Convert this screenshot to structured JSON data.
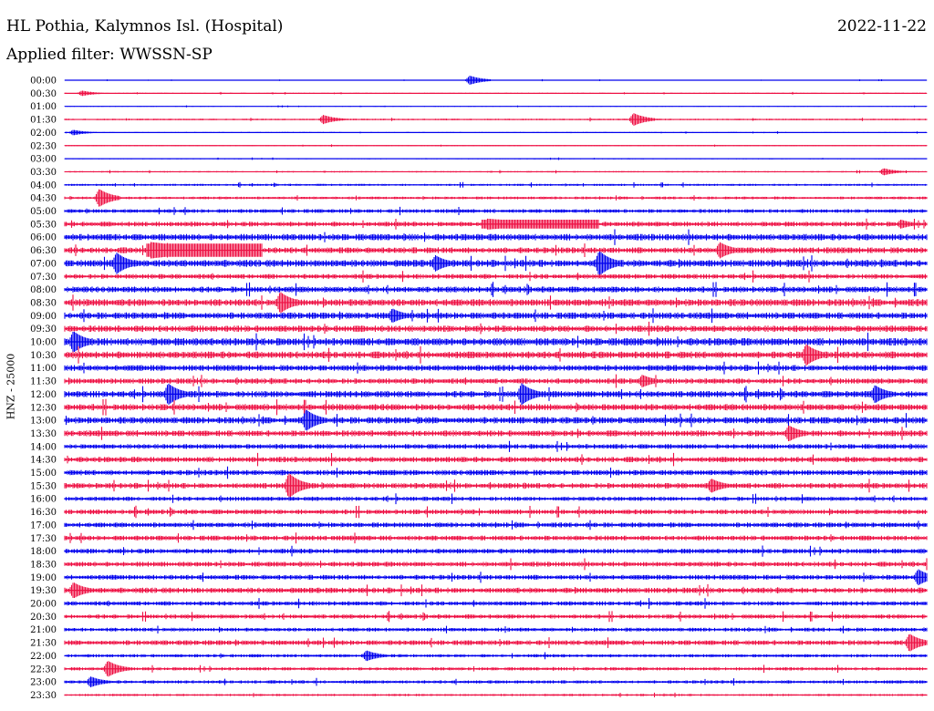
{
  "header": {
    "station": "HL Pothia, Kalymnos Isl. (Hospital)",
    "date": "2022-11-22",
    "filter": "Applied filter: WWSSN-SP"
  },
  "colors": {
    "series_a": "#0000ee",
    "series_b": "#ee1144",
    "background": "#ffffff"
  },
  "chart_data": {
    "type": "line",
    "title": "HL Pothia, Kalymnos Isl. (Hospital)",
    "subtitle": "Applied filter: WWSSN-SP",
    "ylabel": "HNZ - 25000",
    "xlabel": "",
    "grid": false,
    "legend": "none",
    "row_labels": [
      "00:00",
      "00:30",
      "01:00",
      "01:30",
      "02:00",
      "02:30",
      "03:00",
      "03:30",
      "04:00",
      "04:30",
      "05:00",
      "05:30",
      "06:00",
      "06:30",
      "07:00",
      "07:30",
      "08:00",
      "08:30",
      "09:00",
      "09:30",
      "10:00",
      "10:30",
      "11:00",
      "11:30",
      "12:00",
      "12:30",
      "13:00",
      "13:30",
      "14:00",
      "14:30",
      "15:00",
      "15:30",
      "16:00",
      "16:30",
      "17:00",
      "17:30",
      "18:00",
      "18:30",
      "19:00",
      "19:30",
      "20:00",
      "20:30",
      "21:00",
      "21:30",
      "22:00",
      "22:30",
      "23:00",
      "23:30"
    ],
    "row_colors": [
      "series_a",
      "series_b"
    ],
    "noise_level": [
      0.3,
      0.4,
      0.3,
      0.6,
      0.4,
      0.4,
      0.4,
      0.5,
      0.8,
      1.0,
      1.4,
      1.8,
      2.4,
      2.2,
      2.6,
      1.8,
      2.2,
      2.6,
      2.4,
      2.4,
      2.8,
      2.6,
      2.2,
      2.0,
      2.4,
      2.4,
      2.4,
      2.2,
      1.8,
      2.0,
      2.0,
      2.0,
      1.6,
      1.8,
      1.8,
      1.8,
      1.8,
      1.8,
      1.8,
      2.0,
      1.6,
      1.6,
      1.4,
      1.8,
      1.2,
      1.2,
      1.2,
      0.8
    ],
    "events": [
      {
        "row": 0,
        "t": 0.47,
        "amp": 5
      },
      {
        "row": 1,
        "t": 0.02,
        "amp": 3
      },
      {
        "row": 3,
        "t": 0.3,
        "amp": 5
      },
      {
        "row": 3,
        "t": 0.66,
        "amp": 7
      },
      {
        "row": 4,
        "t": 0.01,
        "amp": 3
      },
      {
        "row": 7,
        "t": 0.95,
        "amp": 4
      },
      {
        "row": 9,
        "t": 0.04,
        "amp": 10
      },
      {
        "row": 11,
        "t": 0.49,
        "amp": 6,
        "dur": 0.13
      },
      {
        "row": 11,
        "t": 0.97,
        "amp": 5
      },
      {
        "row": 13,
        "t": 0.1,
        "amp": 9,
        "dur": 0.13
      },
      {
        "row": 13,
        "t": 0.76,
        "amp": 9
      },
      {
        "row": 14,
        "t": 0.06,
        "amp": 12
      },
      {
        "row": 14,
        "t": 0.62,
        "amp": 14
      },
      {
        "row": 14,
        "t": 0.43,
        "amp": 9
      },
      {
        "row": 17,
        "t": 0.25,
        "amp": 12
      },
      {
        "row": 18,
        "t": 0.38,
        "amp": 8
      },
      {
        "row": 20,
        "t": 0.01,
        "amp": 12
      },
      {
        "row": 21,
        "t": 0.86,
        "amp": 12
      },
      {
        "row": 23,
        "t": 0.67,
        "amp": 7
      },
      {
        "row": 24,
        "t": 0.12,
        "amp": 12
      },
      {
        "row": 24,
        "t": 0.53,
        "amp": 12
      },
      {
        "row": 24,
        "t": 0.94,
        "amp": 10
      },
      {
        "row": 26,
        "t": 0.28,
        "amp": 12
      },
      {
        "row": 27,
        "t": 0.84,
        "amp": 9
      },
      {
        "row": 31,
        "t": 0.26,
        "amp": 14
      },
      {
        "row": 31,
        "t": 0.75,
        "amp": 8
      },
      {
        "row": 38,
        "t": 0.99,
        "amp": 9
      },
      {
        "row": 39,
        "t": 0.01,
        "amp": 9
      },
      {
        "row": 43,
        "t": 0.98,
        "amp": 10
      },
      {
        "row": 44,
        "t": 0.35,
        "amp": 6
      },
      {
        "row": 45,
        "t": 0.05,
        "amp": 9
      },
      {
        "row": 46,
        "t": 0.03,
        "amp": 6
      }
    ]
  }
}
